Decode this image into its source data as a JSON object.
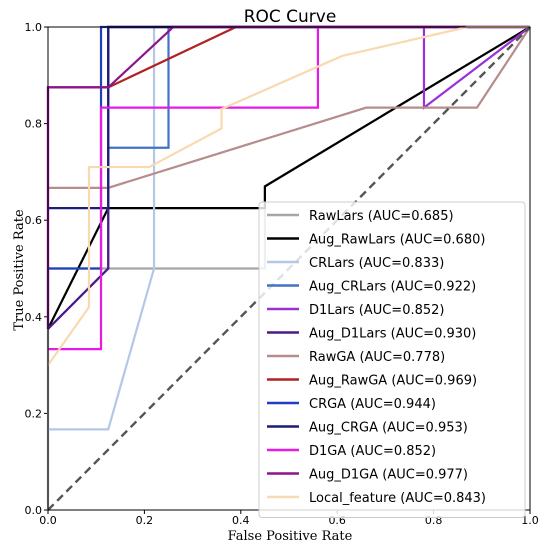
{
  "chart_data": {
    "type": "line",
    "title": "ROC Curve",
    "xlabel": "False Positive Rate",
    "ylabel": "True Positive Rate",
    "xlim": [
      0.0,
      1.0
    ],
    "ylim": [
      0.0,
      1.0
    ],
    "xticks": [
      "0.0",
      "0.2",
      "0.4",
      "0.6",
      "0.8",
      "1.0"
    ],
    "yticks": [
      "0.0",
      "0.2",
      "0.4",
      "0.6",
      "0.8",
      "1.0"
    ],
    "grid": false,
    "legend_position": "lower-right",
    "reference_line": {
      "x": [
        0,
        1
      ],
      "y": [
        0,
        1
      ],
      "style": "dashed",
      "color": "#555555"
    },
    "series": [
      {
        "name": "RawLars (AUC=0.685)",
        "color": "#a6a6a6",
        "x": [
          0,
          0,
          0.45,
          0.45,
          1.0
        ],
        "y": [
          0,
          0.5,
          0.5,
          0.67,
          1.0
        ]
      },
      {
        "name": "Aug_RawLars (AUC=0.680)",
        "color": "#000000",
        "x": [
          0,
          0.125,
          0.125,
          0.45,
          0.45,
          1.0
        ],
        "y": [
          0.375,
          0.625,
          0.625,
          0.625,
          0.67,
          1.0
        ]
      },
      {
        "name": "CRLars (AUC=0.833)",
        "color": "#b4c7e7",
        "x": [
          0,
          0.125,
          0.22,
          0.22,
          0.22,
          1.0
        ],
        "y": [
          0.167,
          0.167,
          0.5,
          0.833,
          1.0,
          1.0
        ]
      },
      {
        "name": "Aug_CRLars (AUC=0.922)",
        "color": "#4472c4",
        "x": [
          0,
          0.125,
          0.125,
          0.25,
          0.25,
          1.0
        ],
        "y": [
          0.375,
          0.5,
          0.75,
          0.75,
          1.0,
          1.0
        ]
      },
      {
        "name": "D1Lars (AUC=0.852)",
        "color": "#9b30d9",
        "x": [
          0,
          0,
          0.125,
          0.125,
          0.78,
          0.78,
          1.0
        ],
        "y": [
          0.375,
          0.875,
          0.875,
          1.0,
          1.0,
          0.833,
          1.0
        ]
      },
      {
        "name": "Aug_D1Lars (AUC=0.930)",
        "color": "#4b1a86",
        "x": [
          0,
          0.125,
          0.125,
          1.0
        ],
        "y": [
          0.375,
          0.5,
          1.0,
          1.0
        ]
      },
      {
        "name": "RawGA (AUC=0.778)",
        "color": "#b78c8c",
        "x": [
          0,
          0.125,
          0.66,
          0.89,
          1.0
        ],
        "y": [
          0.667,
          0.667,
          0.833,
          0.833,
          1.0
        ]
      },
      {
        "name": "Aug_RawGA (AUC=0.969)",
        "color": "#b22222",
        "x": [
          0,
          0.125,
          0.39,
          1.0
        ],
        "y": [
          0.875,
          0.875,
          1.0,
          1.0
        ]
      },
      {
        "name": "CRGA (AUC=0.944)",
        "color": "#1f3fbf",
        "x": [
          0,
          0.11,
          0.11,
          1.0
        ],
        "y": [
          0.5,
          0.5,
          1.0,
          1.0
        ]
      },
      {
        "name": "Aug_CRGA (AUC=0.953)",
        "color": "#1c1c7a",
        "x": [
          0,
          0.125,
          0.125,
          1.0
        ],
        "y": [
          0.625,
          0.625,
          1.0,
          1.0
        ]
      },
      {
        "name": "D1GA (AUC=0.852)",
        "color": "#e619e6",
        "x": [
          0,
          0.11,
          0.11,
          0.56,
          0.56,
          1.0
        ],
        "y": [
          0.333,
          0.333,
          0.833,
          0.833,
          1.0,
          1.0
        ]
      },
      {
        "name": "Aug_D1GA (AUC=0.977)",
        "color": "#8b168b",
        "x": [
          0,
          0,
          0.125,
          0.26,
          1.0
        ],
        "y": [
          0.375,
          0.875,
          0.875,
          1.0,
          1.0
        ]
      },
      {
        "name": "Local_feature (AUC=0.843)",
        "color": "#f8d9b0",
        "x": [
          0,
          0.085,
          0.085,
          0.21,
          0.36,
          0.36,
          0.61,
          0.87,
          1.0
        ],
        "y": [
          0.3,
          0.42,
          0.71,
          0.71,
          0.79,
          0.83,
          0.94,
          1.0,
          1.0
        ]
      }
    ]
  }
}
